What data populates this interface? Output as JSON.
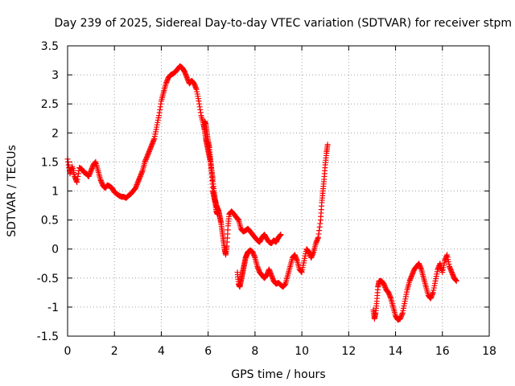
{
  "chart_data": {
    "type": "scatter",
    "title": "Day 239 of 2025, Sidereal Day-to-day VTEC variation (SDTVAR) for receiver stpm",
    "xlabel": "GPS time / hours",
    "ylabel": "SDTVAR / TECUs",
    "xlim": [
      0,
      18
    ],
    "ylim": [
      -1.5,
      3.5
    ],
    "xticks": [
      0,
      2,
      4,
      6,
      8,
      10,
      12,
      14,
      16,
      18
    ],
    "xtick_labels": [
      "0",
      "2",
      "4",
      "6",
      "8",
      "10",
      "12",
      "14",
      "16",
      "18"
    ],
    "yticks": [
      -1.5,
      -1,
      -0.5,
      0,
      0.5,
      1,
      1.5,
      2,
      2.5,
      3,
      3.5
    ],
    "ytick_labels": [
      "-1.5",
      "-1",
      "-0.5",
      "0",
      "0.5",
      "1",
      "1.5",
      "2",
      "2.5",
      "3",
      "3.5"
    ],
    "grid": true,
    "marker": "plus",
    "series": [
      {
        "name": "SDTVAR",
        "color": "#ff0000",
        "segments": [
          {
            "x": [
              0.0,
              0.1,
              0.2,
              0.3,
              0.4,
              0.5,
              0.6,
              0.7,
              0.8,
              0.9,
              1.0,
              1.1,
              1.2,
              1.3,
              1.4,
              1.5,
              1.6,
              1.7,
              1.8,
              1.9,
              2.0,
              2.1,
              2.2,
              2.3,
              2.4,
              2.5,
              2.6,
              2.7,
              2.8,
              2.9,
              3.0,
              3.1,
              3.2,
              3.3,
              3.4,
              3.5,
              3.6,
              3.7,
              3.8,
              3.9,
              4.0,
              4.1,
              4.2,
              4.3,
              4.4,
              4.5,
              4.6,
              4.7,
              4.8,
              4.9,
              5.0,
              5.1,
              5.2,
              5.3,
              5.4,
              5.5,
              5.6,
              5.7,
              5.8,
              5.85,
              5.9,
              5.95,
              6.0,
              6.05,
              6.1,
              6.15,
              6.2,
              6.25,
              6.3,
              6.35,
              6.4,
              6.45,
              6.5,
              6.55,
              6.6,
              6.65,
              6.7,
              6.75,
              6.8,
              6.85,
              6.9,
              7.0,
              7.1,
              7.2,
              7.3,
              7.4,
              7.5,
              7.6,
              7.7,
              7.8,
              7.9,
              8.0,
              8.1,
              8.2,
              8.3,
              8.4,
              8.5,
              8.6,
              8.7,
              8.8,
              8.9,
              9.0,
              9.1
            ],
            "y": [
              1.55,
              1.3,
              1.42,
              1.25,
              1.15,
              1.4,
              1.38,
              1.32,
              1.3,
              1.25,
              1.35,
              1.45,
              1.5,
              1.35,
              1.2,
              1.1,
              1.05,
              1.1,
              1.08,
              1.05,
              0.98,
              0.95,
              0.92,
              0.9,
              0.9,
              0.88,
              0.92,
              0.95,
              1.0,
              1.05,
              1.15,
              1.25,
              1.35,
              1.5,
              1.6,
              1.7,
              1.8,
              1.9,
              2.1,
              2.3,
              2.55,
              2.7,
              2.85,
              2.95,
              3.0,
              3.02,
              3.05,
              3.1,
              3.15,
              3.12,
              3.05,
              2.95,
              2.85,
              2.9,
              2.85,
              2.75,
              2.55,
              2.3,
              2.15,
              2.05,
              1.9,
              1.8,
              1.7,
              1.6,
              1.5,
              1.35,
              1.2,
              1.0,
              0.85,
              0.75,
              0.7,
              0.65,
              0.55,
              0.45,
              0.3,
              0.15,
              0.0,
              -0.1,
              0.05,
              0.4,
              0.6,
              0.65,
              0.6,
              0.55,
              0.5,
              0.35,
              0.3,
              0.32,
              0.35,
              0.3,
              0.25,
              0.2,
              0.15,
              0.12,
              0.2,
              0.25,
              0.18,
              0.12,
              0.1,
              0.15,
              0.12,
              0.2,
              0.25
            ]
          },
          {
            "x": [
              5.85,
              5.9,
              5.95,
              6.0,
              6.05,
              6.1,
              6.15,
              6.2,
              6.25,
              6.3,
              6.35,
              6.4
            ],
            "y": [
              2.2,
              2.15,
              2.0,
              1.85,
              1.75,
              1.55,
              1.3,
              1.0,
              0.9,
              0.8,
              0.65,
              0.6
            ]
          },
          {
            "x": [
              7.25,
              7.3,
              7.35,
              7.4,
              7.45,
              7.5,
              7.55,
              7.6,
              7.65,
              7.7,
              7.8,
              7.9,
              8.0,
              8.1,
              8.2,
              8.3,
              8.4,
              8.5,
              8.6,
              8.7,
              8.8,
              8.9,
              9.0,
              9.1,
              9.2,
              9.3,
              9.4,
              9.5,
              9.6,
              9.7,
              9.8,
              9.9,
              10.0,
              10.1,
              10.2,
              10.3,
              10.4,
              10.5,
              10.6,
              10.7,
              10.8,
              10.85,
              10.9,
              10.95,
              11.0,
              11.05,
              11.1
            ],
            "y": [
              -0.4,
              -0.6,
              -0.65,
              -0.55,
              -0.45,
              -0.35,
              -0.25,
              -0.15,
              -0.1,
              -0.05,
              -0.02,
              -0.05,
              -0.15,
              -0.3,
              -0.4,
              -0.45,
              -0.5,
              -0.45,
              -0.35,
              -0.45,
              -0.55,
              -0.6,
              -0.58,
              -0.62,
              -0.65,
              -0.6,
              -0.45,
              -0.3,
              -0.15,
              -0.1,
              -0.2,
              -0.35,
              -0.4,
              -0.2,
              0.0,
              -0.05,
              -0.15,
              -0.05,
              0.1,
              0.2,
              0.5,
              0.8,
              1.0,
              1.2,
              1.45,
              1.65,
              1.8
            ]
          },
          {
            "x": [
              13.05,
              13.1,
              13.15,
              13.2,
              13.25,
              13.3,
              13.4,
              13.5,
              13.6,
              13.7,
              13.8,
              13.9,
              14.0,
              14.1,
              14.2,
              14.3,
              14.4,
              14.5,
              14.6,
              14.7,
              14.8,
              14.9,
              15.0,
              15.1,
              15.2,
              15.3,
              15.4,
              15.5,
              15.6,
              15.7,
              15.8,
              15.9,
              16.0,
              16.1,
              16.2,
              16.3,
              16.4,
              16.5,
              16.6
            ],
            "y": [
              -1.05,
              -1.2,
              -1.1,
              -0.9,
              -0.65,
              -0.55,
              -0.55,
              -0.6,
              -0.7,
              -0.75,
              -0.85,
              -1.0,
              -1.15,
              -1.22,
              -1.2,
              -1.1,
              -0.9,
              -0.7,
              -0.55,
              -0.45,
              -0.35,
              -0.3,
              -0.25,
              -0.35,
              -0.5,
              -0.65,
              -0.8,
              -0.85,
              -0.75,
              -0.55,
              -0.35,
              -0.25,
              -0.4,
              -0.2,
              -0.1,
              -0.3,
              -0.4,
              -0.5,
              -0.55
            ]
          }
        ]
      }
    ]
  }
}
